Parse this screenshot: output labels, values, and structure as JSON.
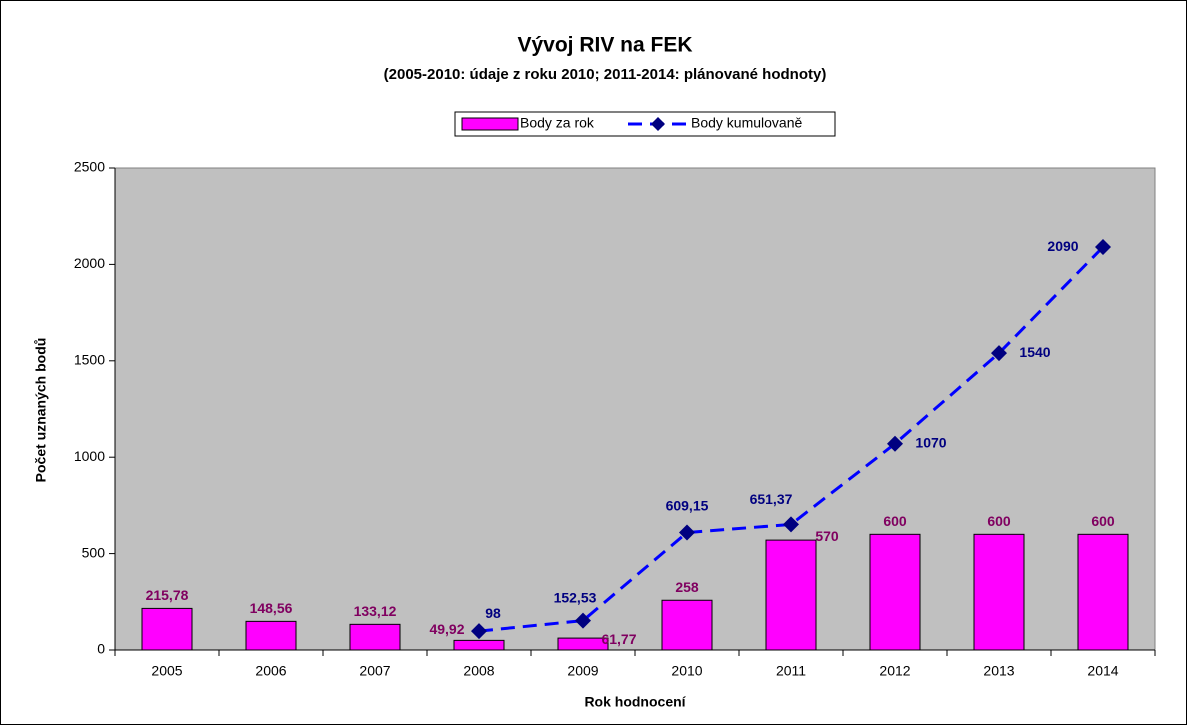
{
  "chart_data": {
    "type": "bar",
    "title": "Vývoj RIV na FEK",
    "subtitle": "(2005-2010: údaje z roku 2010;  2011-2014: plánované hodnoty)",
    "x_label": "Rok hodnocení",
    "y_label": "Počet uznaných bodů",
    "categories": [
      "2005",
      "2006",
      "2007",
      "2008",
      "2009",
      "2010",
      "2011",
      "2012",
      "2013",
      "2014"
    ],
    "series": [
      {
        "name": "Body za rok",
        "type": "bar",
        "color": "#ff00ff",
        "label_color": "#800060",
        "values": [
          215.78,
          148.56,
          133.12,
          49.92,
          61.77,
          258,
          570,
          600,
          600,
          600
        ],
        "value_labels": [
          "215,78",
          "148,56",
          "133,12",
          "49,92",
          "61,77",
          "258",
          "570",
          "600",
          "600",
          "600"
        ]
      },
      {
        "name": "Body kumulovaně",
        "type": "line",
        "color": "#0000ff",
        "marker_color": "#000080",
        "label_color": "#000080",
        "values": [
          null,
          null,
          null,
          98,
          152.53,
          609.15,
          651.37,
          1070,
          1540,
          2090
        ],
        "value_labels": [
          null,
          null,
          null,
          "98",
          "152,53",
          "609,15",
          "651,37",
          "1070",
          "1540",
          "2090"
        ]
      }
    ],
    "ylim": [
      0,
      2500
    ],
    "yticks": [
      0,
      500,
      1000,
      1500,
      2000,
      2500
    ],
    "grid": false,
    "legend": "top",
    "background": "#c0c0c0"
  }
}
